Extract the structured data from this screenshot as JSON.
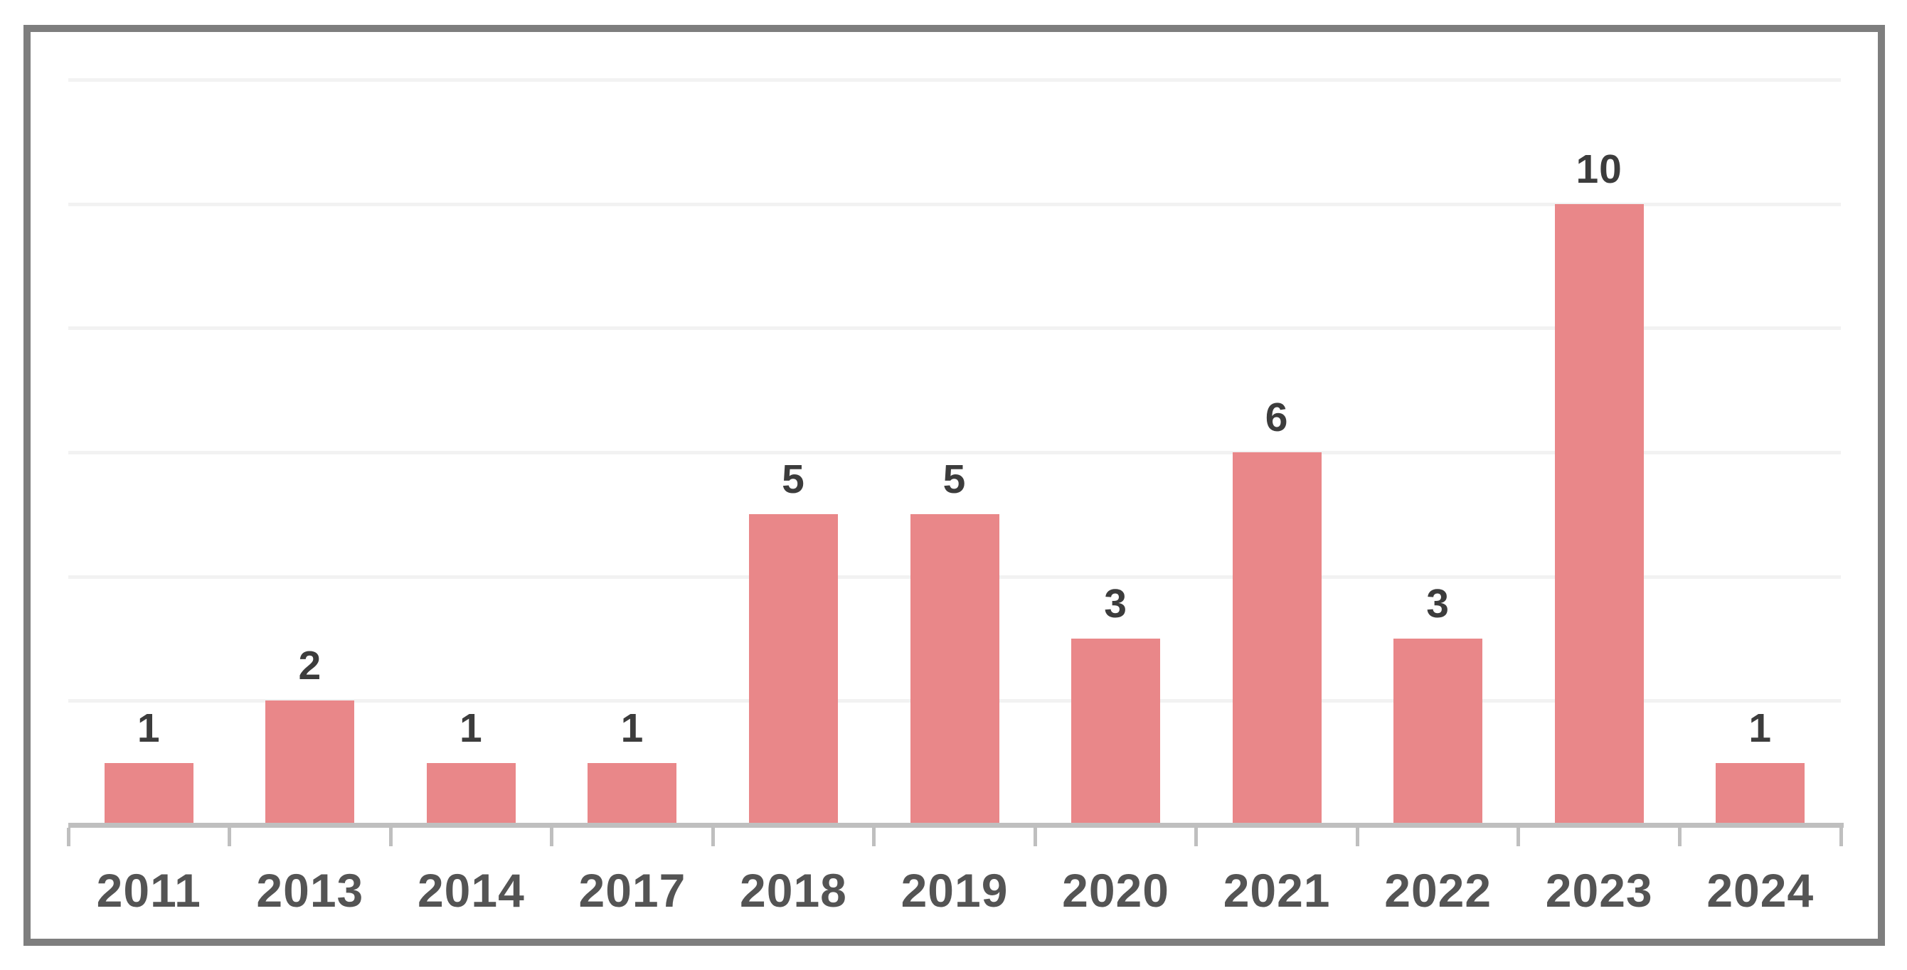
{
  "chart_data": {
    "type": "bar",
    "title": "",
    "xlabel": "",
    "ylabel": "",
    "categories": [
      "2011",
      "2013",
      "2014",
      "2017",
      "2018",
      "2019",
      "2020",
      "2021",
      "2022",
      "2023",
      "2024"
    ],
    "values": [
      1,
      2,
      1,
      1,
      5,
      5,
      3,
      6,
      3,
      10,
      1
    ],
    "data_labels_shown": true,
    "ylim": [
      0,
      12
    ],
    "gridline_step": 2,
    "grid": "horizontal-only",
    "legend_position": "none",
    "y_axis_labels_shown": false
  },
  "colors": {
    "bar_fill": "#e98789",
    "data_label_text": "#3c3c3c",
    "category_label_text": "#545454",
    "axis_line": "#bfbfbf",
    "tick_mark": "#bfbfbf",
    "gridline": "#f2f2f2",
    "frame_border": "#7e7e7e",
    "background": "#ffffff"
  }
}
